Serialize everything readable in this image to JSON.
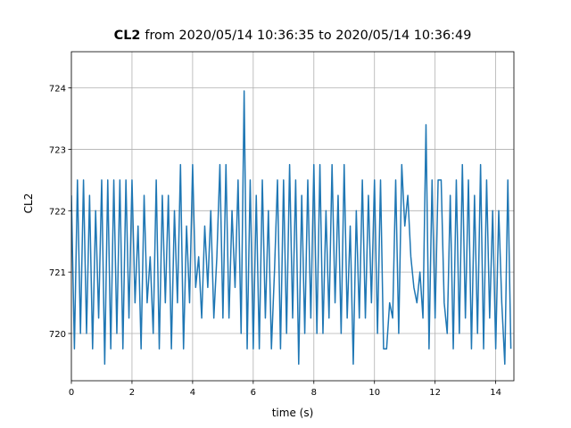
{
  "chart_data": {
    "type": "line",
    "title": {
      "bold": "CL2",
      "text": "from 2020/05/14 10:36:35 to 2020/05/14 10:36:49"
    },
    "x_label": "time (s)",
    "y_label": "CL2",
    "color": "#1f77b4",
    "grid": true,
    "xlim": [
      0,
      14.6
    ],
    "ylim": [
      719.23,
      724.59
    ],
    "xticks": [
      0,
      2,
      4,
      6,
      8,
      10,
      12,
      14
    ],
    "yticks": [
      720,
      721,
      722,
      723,
      724
    ],
    "x": [
      0,
      0.1,
      0.2,
      0.3,
      0.4,
      0.5,
      0.6,
      0.7,
      0.8,
      0.9,
      1,
      1.1,
      1.2,
      1.3,
      1.4,
      1.5,
      1.6,
      1.7,
      1.8,
      1.9,
      2,
      2.1,
      2.2,
      2.3,
      2.4,
      2.5,
      2.6,
      2.7,
      2.8,
      2.9,
      3,
      3.1,
      3.2,
      3.3,
      3.4,
      3.5,
      3.6,
      3.7,
      3.8,
      3.9,
      4,
      4.1,
      4.2,
      4.3,
      4.4,
      4.5,
      4.6,
      4.7,
      4.8,
      4.9,
      5,
      5.1,
      5.2,
      5.3,
      5.4,
      5.5,
      5.6,
      5.7,
      5.8,
      5.9,
      6,
      6.1,
      6.2,
      6.3,
      6.4,
      6.5,
      6.6,
      6.7,
      6.8,
      6.9,
      7,
      7.1,
      7.2,
      7.3,
      7.4,
      7.5,
      7.6,
      7.7,
      7.8,
      7.9,
      8,
      8.1,
      8.2,
      8.3,
      8.4,
      8.5,
      8.6,
      8.7,
      8.8,
      8.9,
      9,
      9.1,
      9.2,
      9.3,
      9.4,
      9.5,
      9.6,
      9.7,
      9.8,
      9.9,
      10,
      10.1,
      10.2,
      10.3,
      10.4,
      10.5,
      10.6,
      10.7,
      10.8,
      10.9,
      11,
      11.1,
      11.2,
      11.3,
      11.4,
      11.5,
      11.6,
      11.7,
      11.8,
      11.9,
      12,
      12.1,
      12.2,
      12.3,
      12.4,
      12.5,
      12.6,
      12.7,
      12.8,
      12.9,
      13,
      13.1,
      13.2,
      13.3,
      13.4,
      13.5,
      13.6,
      13.7,
      13.8,
      13.9,
      14,
      14.1,
      14.2,
      14.3,
      14.4,
      14.5
    ],
    "values": [
      722.25,
      719.75,
      722.5,
      720,
      722.5,
      720,
      722.25,
      719.75,
      722,
      720.25,
      722.5,
      719.5,
      722.5,
      719.75,
      722.5,
      720,
      722.5,
      719.75,
      722.5,
      720.25,
      722.5,
      720.5,
      721.75,
      719.75,
      722.25,
      720.5,
      721.25,
      720,
      722.5,
      719.75,
      722.25,
      720.5,
      722.25,
      719.75,
      722,
      720.5,
      722.75,
      719.75,
      721.75,
      720.5,
      722.75,
      720.75,
      721.25,
      720.25,
      721.75,
      720.75,
      722,
      720.25,
      721.25,
      722.75,
      720.25,
      722.75,
      720.25,
      722,
      720.75,
      722.5,
      720,
      723.95,
      719.75,
      722.5,
      719.75,
      722.25,
      719.75,
      722.5,
      720.25,
      722,
      719.75,
      721,
      722.5,
      719.75,
      722.5,
      720,
      722.75,
      720.25,
      722.5,
      719.5,
      722.25,
      720,
      722.5,
      720.25,
      722.75,
      720,
      722.75,
      720,
      722,
      720.25,
      722.75,
      720.5,
      722.25,
      720,
      722.75,
      720.25,
      721.75,
      719.5,
      722,
      720.25,
      722.5,
      720.25,
      722.25,
      720.5,
      722.5,
      720,
      722.5,
      719.75,
      719.75,
      720.5,
      720.25,
      722.5,
      720,
      722.75,
      721.75,
      722.25,
      721.25,
      720.75,
      720.5,
      721,
      720.25,
      723.4,
      719.75,
      722.5,
      720.25,
      722.5,
      722.5,
      720.5,
      720,
      722.25,
      719.75,
      722.5,
      720,
      722.75,
      720.25,
      722.5,
      719.75,
      722.25,
      720,
      722.75,
      719.75,
      722.5,
      720.25,
      722,
      719.75,
      722,
      720.5,
      719.5,
      722.5,
      719.75
    ]
  }
}
